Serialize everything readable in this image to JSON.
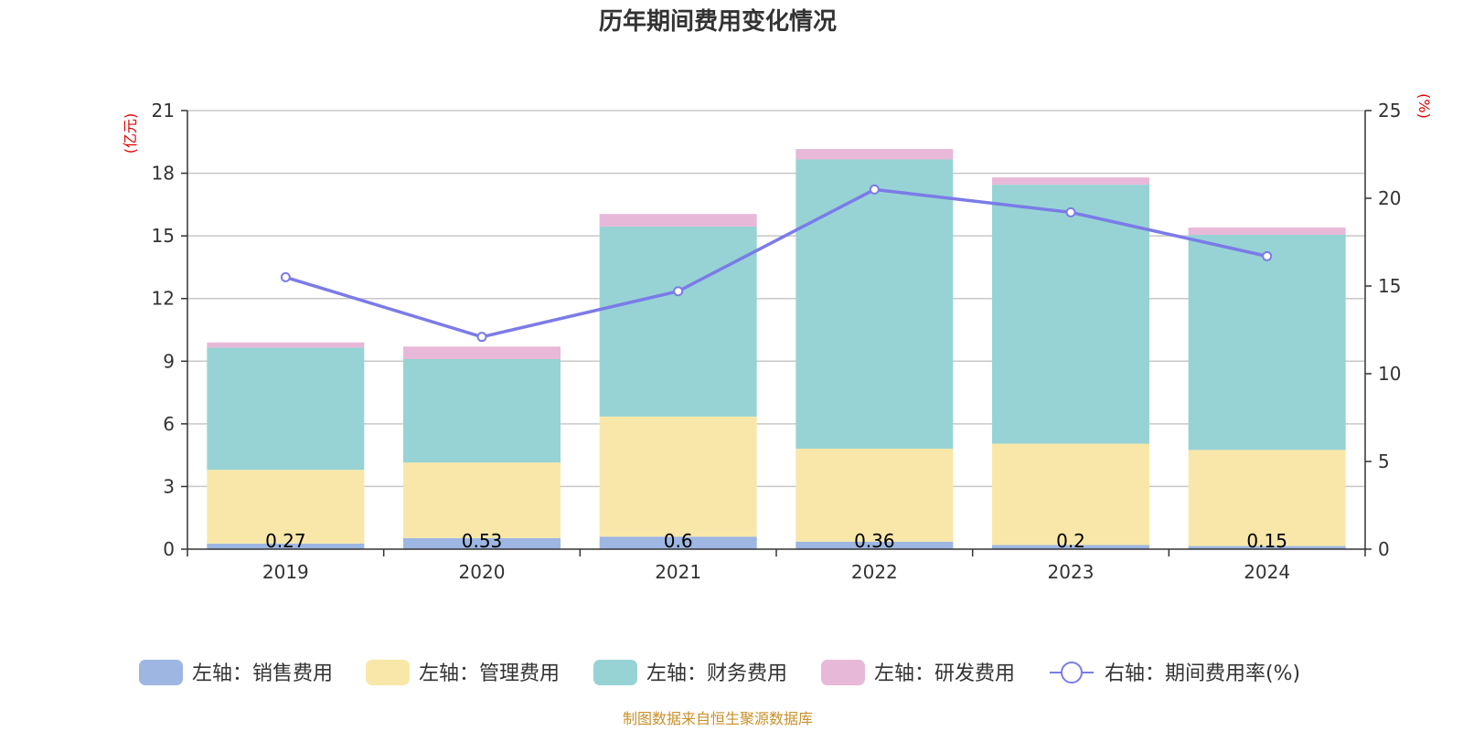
{
  "chart_data": {
    "type": "bar",
    "title": "历年期间费用变化情况",
    "categories": [
      "2019",
      "2020",
      "2021",
      "2022",
      "2023",
      "2024"
    ],
    "left_axis": {
      "unit": "(亿元)",
      "ticks": [
        0,
        3,
        6,
        9,
        12,
        15,
        18,
        21
      ],
      "range": [
        0,
        21
      ]
    },
    "right_axis": {
      "unit": "(%)",
      "ticks": [
        0,
        5,
        10,
        15,
        20,
        25
      ],
      "range": [
        0,
        25
      ]
    },
    "series": [
      {
        "name": "左轴：销售费用",
        "type": "bar",
        "stack": true,
        "color": "#9db6e2",
        "values": [
          0.27,
          0.53,
          0.6,
          0.36,
          0.2,
          0.15
        ],
        "labels": [
          "0.27",
          "0.53",
          "0.6",
          "0.36",
          "0.2",
          "0.15"
        ]
      },
      {
        "name": "左轴：管理费用",
        "type": "bar",
        "stack": true,
        "color": "#f8e7a8",
        "values": [
          3.53,
          3.62,
          5.75,
          4.45,
          4.85,
          4.6
        ]
      },
      {
        "name": "左轴：财务费用",
        "type": "bar",
        "stack": true,
        "color": "#97d3d4",
        "values": [
          5.85,
          4.95,
          9.1,
          13.85,
          12.4,
          10.3
        ]
      },
      {
        "name": "左轴：研发费用",
        "type": "bar",
        "stack": true,
        "color": "#e8b8d9",
        "values": [
          0.25,
          0.6,
          0.6,
          0.5,
          0.35,
          0.35
        ]
      },
      {
        "name": "右轴：期间费用率(%)",
        "type": "line",
        "axis": "right",
        "color": "#7b7be8",
        "values": [
          15.5,
          12.1,
          14.7,
          20.5,
          19.2,
          16.7
        ]
      }
    ],
    "grid": true,
    "legend": "bottom"
  },
  "source_text": "制图数据来自恒生聚源数据库"
}
